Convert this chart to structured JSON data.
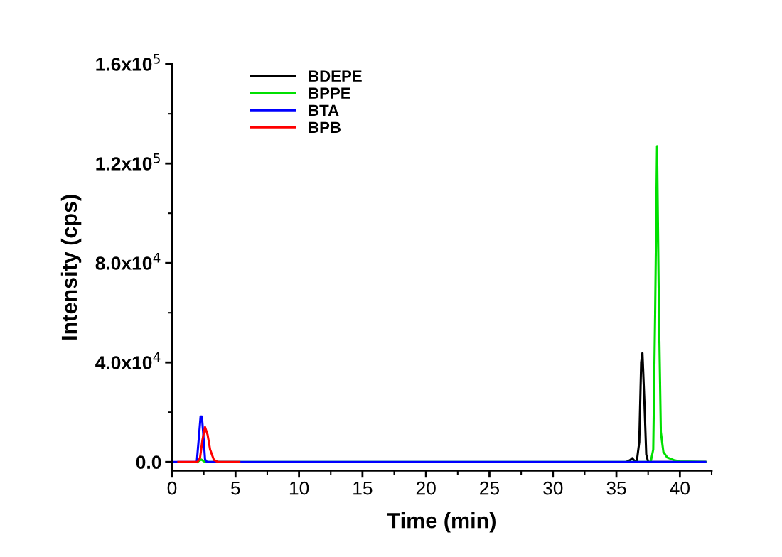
{
  "chart_data": {
    "type": "line",
    "xlabel": "Time (min)",
    "ylabel": "Intensity (cps)",
    "xlim": [
      0,
      42
    ],
    "xticks": [
      0,
      5,
      10,
      15,
      20,
      25,
      30,
      35,
      40
    ],
    "ylim": [
      -3500,
      160000
    ],
    "yticks": [
      {
        "value": 0,
        "label": "0.0"
      },
      {
        "value": 40000,
        "label": "4.0x10$^{4}$"
      },
      {
        "value": 80000,
        "label": "8.0x10$^{4}$"
      },
      {
        "value": 120000,
        "label": "1.2x10$^{5}$"
      },
      {
        "value": 160000,
        "label": "1.6x10$^{5}$"
      }
    ],
    "grid": false,
    "legend": "top left",
    "marker": "none",
    "line_style": "solid",
    "series": [
      {
        "name": "BDEPE",
        "color": "#000000",
        "x": [
          35.8,
          36.1,
          36.25,
          36.4,
          36.6,
          36.8,
          36.95,
          37.05,
          37.2,
          37.35,
          37.5,
          38,
          42
        ],
        "values": [
          0,
          800,
          1500,
          600,
          0,
          8000,
          40000,
          43800,
          25000,
          3000,
          0,
          0,
          0
        ]
      },
      {
        "name": "BPPE",
        "color": "#00e000",
        "x": [
          2.0,
          2.3,
          2.6,
          2.8,
          37.7,
          37.9,
          38.05,
          38.2,
          38.35,
          38.5,
          38.7,
          39,
          39.5,
          40,
          42
        ],
        "values": [
          0,
          1000,
          0,
          0,
          0,
          5000,
          60000,
          127000,
          60000,
          12000,
          4000,
          1800,
          800,
          200,
          0
        ]
      },
      {
        "name": "BTA",
        "color": "#0000ff",
        "x": [
          0,
          1.95,
          2.1,
          2.25,
          2.35,
          2.45,
          2.6,
          2.75,
          42
        ],
        "values": [
          0,
          0,
          9000,
          18300,
          18300,
          12000,
          1000,
          0,
          0
        ]
      },
      {
        "name": "BPB",
        "color": "#ff0000",
        "x": [
          0.5,
          2.0,
          2.2,
          2.4,
          2.6,
          2.8,
          3.0,
          3.3,
          3.6,
          5.3
        ],
        "values": [
          0,
          0,
          1500,
          9000,
          14000,
          11000,
          5000,
          800,
          0,
          0
        ]
      }
    ]
  }
}
